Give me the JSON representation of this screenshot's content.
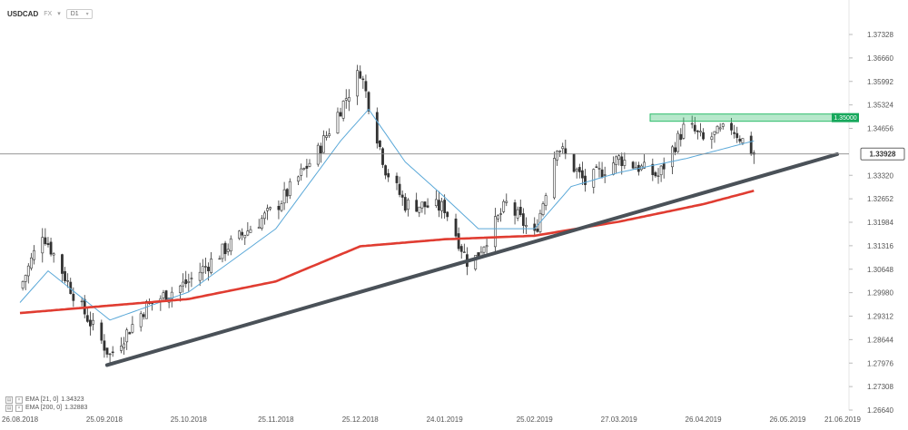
{
  "header": {
    "symbol": "USDCAD",
    "type_label": "FX",
    "timeframe": "D1"
  },
  "colors": {
    "candle_up": "#ffffff",
    "candle_down": "#333333",
    "ema_short": "#5aa8d8",
    "ema_long": "#e03c31",
    "trendline": "#4a5158",
    "resistance_zone": "#2ebd6b",
    "price_line": "#888888"
  },
  "legend": [
    {
      "label": "EMA [21, 0]",
      "value": "1.34323"
    },
    {
      "label": "EMA [200, 0]",
      "value": "1.32883"
    }
  ],
  "chart_data": {
    "type": "candlestick",
    "x_tick_labels": [
      "26.08.2018",
      "25.09.2018",
      "25.10.2018",
      "25.11.2018",
      "25.12.2018",
      "24.01.2019",
      "25.02.2019",
      "27.03.2019",
      "26.04.2019",
      "26.05.2019",
      "21.06.2019"
    ],
    "y_tick_labels": [
      "1.37328",
      "1.36660",
      "1.35992",
      "1.35324",
      "1.34656",
      "1.33320",
      "1.32652",
      "1.31984",
      "1.31316",
      "1.30648",
      "1.29980",
      "1.29312",
      "1.28644",
      "1.27976",
      "1.27308",
      "1.26640"
    ],
    "ylim": [
      1.2664,
      1.37328
    ],
    "current_price": "1.33928",
    "current_price_value": 1.33928,
    "resistance_label": "1.35000",
    "resistance_value": 1.35,
    "trendline": {
      "from_date": "25.09.2018",
      "from_price": 1.2792,
      "to_date": "21.06.2019",
      "to_price": 1.3392
    },
    "candles_anchor": [
      {
        "date": "26.08.2018",
        "close": 1.301
      },
      {
        "date": "03.09.2018",
        "close": 1.317
      },
      {
        "date": "15.09.2018",
        "close": 1.298
      },
      {
        "date": "27.09.2018",
        "close": 1.282
      },
      {
        "date": "10.10.2018",
        "close": 1.296
      },
      {
        "date": "25.10.2018",
        "close": 1.303
      },
      {
        "date": "08.11.2018",
        "close": 1.313
      },
      {
        "date": "25.11.2018",
        "close": 1.324
      },
      {
        "date": "10.12.2018",
        "close": 1.34
      },
      {
        "date": "25.12.2018",
        "close": 1.363
      },
      {
        "date": "03.01.2019",
        "close": 1.335
      },
      {
        "date": "10.01.2019",
        "close": 1.325
      },
      {
        "date": "24.01.2019",
        "close": 1.324
      },
      {
        "date": "02.02.2019",
        "close": 1.307
      },
      {
        "date": "15.02.2019",
        "close": 1.325
      },
      {
        "date": "25.02.2019",
        "close": 1.316
      },
      {
        "date": "05.03.2019",
        "close": 1.342
      },
      {
        "date": "15.03.2019",
        "close": 1.331
      },
      {
        "date": "27.03.2019",
        "close": 1.338
      },
      {
        "date": "10.04.2019",
        "close": 1.333
      },
      {
        "date": "20.04.2019",
        "close": 1.348
      },
      {
        "date": "26.04.2019",
        "close": 1.343
      },
      {
        "date": "06.05.2019",
        "close": 1.347
      },
      {
        "date": "14.05.2019",
        "close": 1.3393
      }
    ],
    "ema_short_anchor": [
      {
        "date": "26.08.2018",
        "value": 1.297
      },
      {
        "date": "05.09.2018",
        "value": 1.306
      },
      {
        "date": "27.09.2018",
        "value": 1.292
      },
      {
        "date": "25.10.2018",
        "value": 1.3
      },
      {
        "date": "25.11.2018",
        "value": 1.318
      },
      {
        "date": "18.12.2018",
        "value": 1.343
      },
      {
        "date": "28.12.2018",
        "value": 1.352
      },
      {
        "date": "10.01.2019",
        "value": 1.337
      },
      {
        "date": "24.01.2019",
        "value": 1.327
      },
      {
        "date": "05.02.2019",
        "value": 1.318
      },
      {
        "date": "25.02.2019",
        "value": 1.318
      },
      {
        "date": "10.03.2019",
        "value": 1.33
      },
      {
        "date": "27.03.2019",
        "value": 1.334
      },
      {
        "date": "20.04.2019",
        "value": 1.338
      },
      {
        "date": "14.05.2019",
        "value": 1.343
      }
    ],
    "ema_long_anchor": [
      {
        "date": "26.08.2018",
        "value": 1.294
      },
      {
        "date": "25.09.2018",
        "value": 1.296
      },
      {
        "date": "25.10.2018",
        "value": 1.298
      },
      {
        "date": "25.11.2018",
        "value": 1.303
      },
      {
        "date": "25.12.2018",
        "value": 1.313
      },
      {
        "date": "24.01.2019",
        "value": 1.315
      },
      {
        "date": "25.02.2019",
        "value": 1.316
      },
      {
        "date": "27.03.2019",
        "value": 1.32
      },
      {
        "date": "26.04.2019",
        "value": 1.325
      },
      {
        "date": "14.05.2019",
        "value": 1.3288
      }
    ]
  }
}
